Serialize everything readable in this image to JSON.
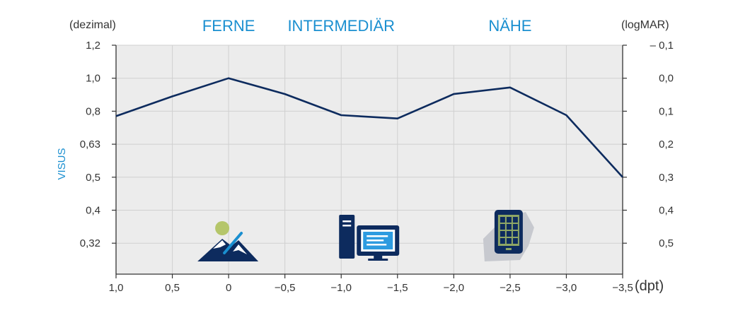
{
  "chart_data": {
    "type": "line",
    "title": "",
    "x_unit": "(dpt)",
    "y_label": "VISUS",
    "y_left_unit": "(dezimal)",
    "y_right_unit": "(logMAR)",
    "zones": [
      {
        "label": "FERNE",
        "x": 0
      },
      {
        "label": "INTERMEDIÄR",
        "x": -1.0
      },
      {
        "label": "NÄHE",
        "x": -2.5
      }
    ],
    "x_ticks": [
      {
        "value": 1.0,
        "label": "1,0"
      },
      {
        "value": 0.5,
        "label": "0,5"
      },
      {
        "value": 0.0,
        "label": "0"
      },
      {
        "value": -0.5,
        "label": "−0,5"
      },
      {
        "value": -1.0,
        "label": "−1,0"
      },
      {
        "value": -1.5,
        "label": "−1,5"
      },
      {
        "value": -2.0,
        "label": "−2,0"
      },
      {
        "value": -2.5,
        "label": "−2,5"
      },
      {
        "value": -3.0,
        "label": "−3,0"
      },
      {
        "value": -3.5,
        "label": "−3,5"
      }
    ],
    "xlim": [
      1.0,
      -3.5
    ],
    "y_ticks": [
      {
        "logmar": -0.1,
        "left": "1,2",
        "right": "– 0,1"
      },
      {
        "logmar": 0.0,
        "left": "1,0",
        "right": "0,0"
      },
      {
        "logmar": 0.1,
        "left": "0,8",
        "right": "0,1"
      },
      {
        "logmar": 0.2,
        "left": "0,63",
        "right": "0,2"
      },
      {
        "logmar": 0.3,
        "left": "0,5",
        "right": "0,3"
      },
      {
        "logmar": 0.4,
        "left": "0,4",
        "right": "0,4"
      },
      {
        "logmar": 0.5,
        "left": "0,32",
        "right": "0,5"
      }
    ],
    "ylim_logmar": [
      -0.1,
      0.62
    ],
    "series": [
      {
        "color": "#0d2b5e",
        "points": [
          {
            "x": 1.0,
            "y": 0.115
          },
          {
            "x": 0.5,
            "y": 0.055
          },
          {
            "x": 0.0,
            "y": 0.0
          },
          {
            "x": -0.5,
            "y": 0.048
          },
          {
            "x": -1.0,
            "y": 0.112
          },
          {
            "x": -1.5,
            "y": 0.122
          },
          {
            "x": -2.0,
            "y": 0.048
          },
          {
            "x": -2.5,
            "y": 0.028
          },
          {
            "x": -3.0,
            "y": 0.112
          },
          {
            "x": -3.5,
            "y": 0.3
          }
        ]
      }
    ],
    "grid": true,
    "icons": [
      {
        "name": "mountain-icon",
        "x": 0.0
      },
      {
        "name": "computer-icon",
        "x": -1.0
      },
      {
        "name": "smartphone-icon",
        "x": -2.5
      }
    ]
  },
  "colors": {
    "line": "#0d2b5e",
    "grid": "#d0d0d0",
    "plot_bg": "#ececec",
    "axis": "#333333",
    "accent": "#1a8fd0"
  }
}
